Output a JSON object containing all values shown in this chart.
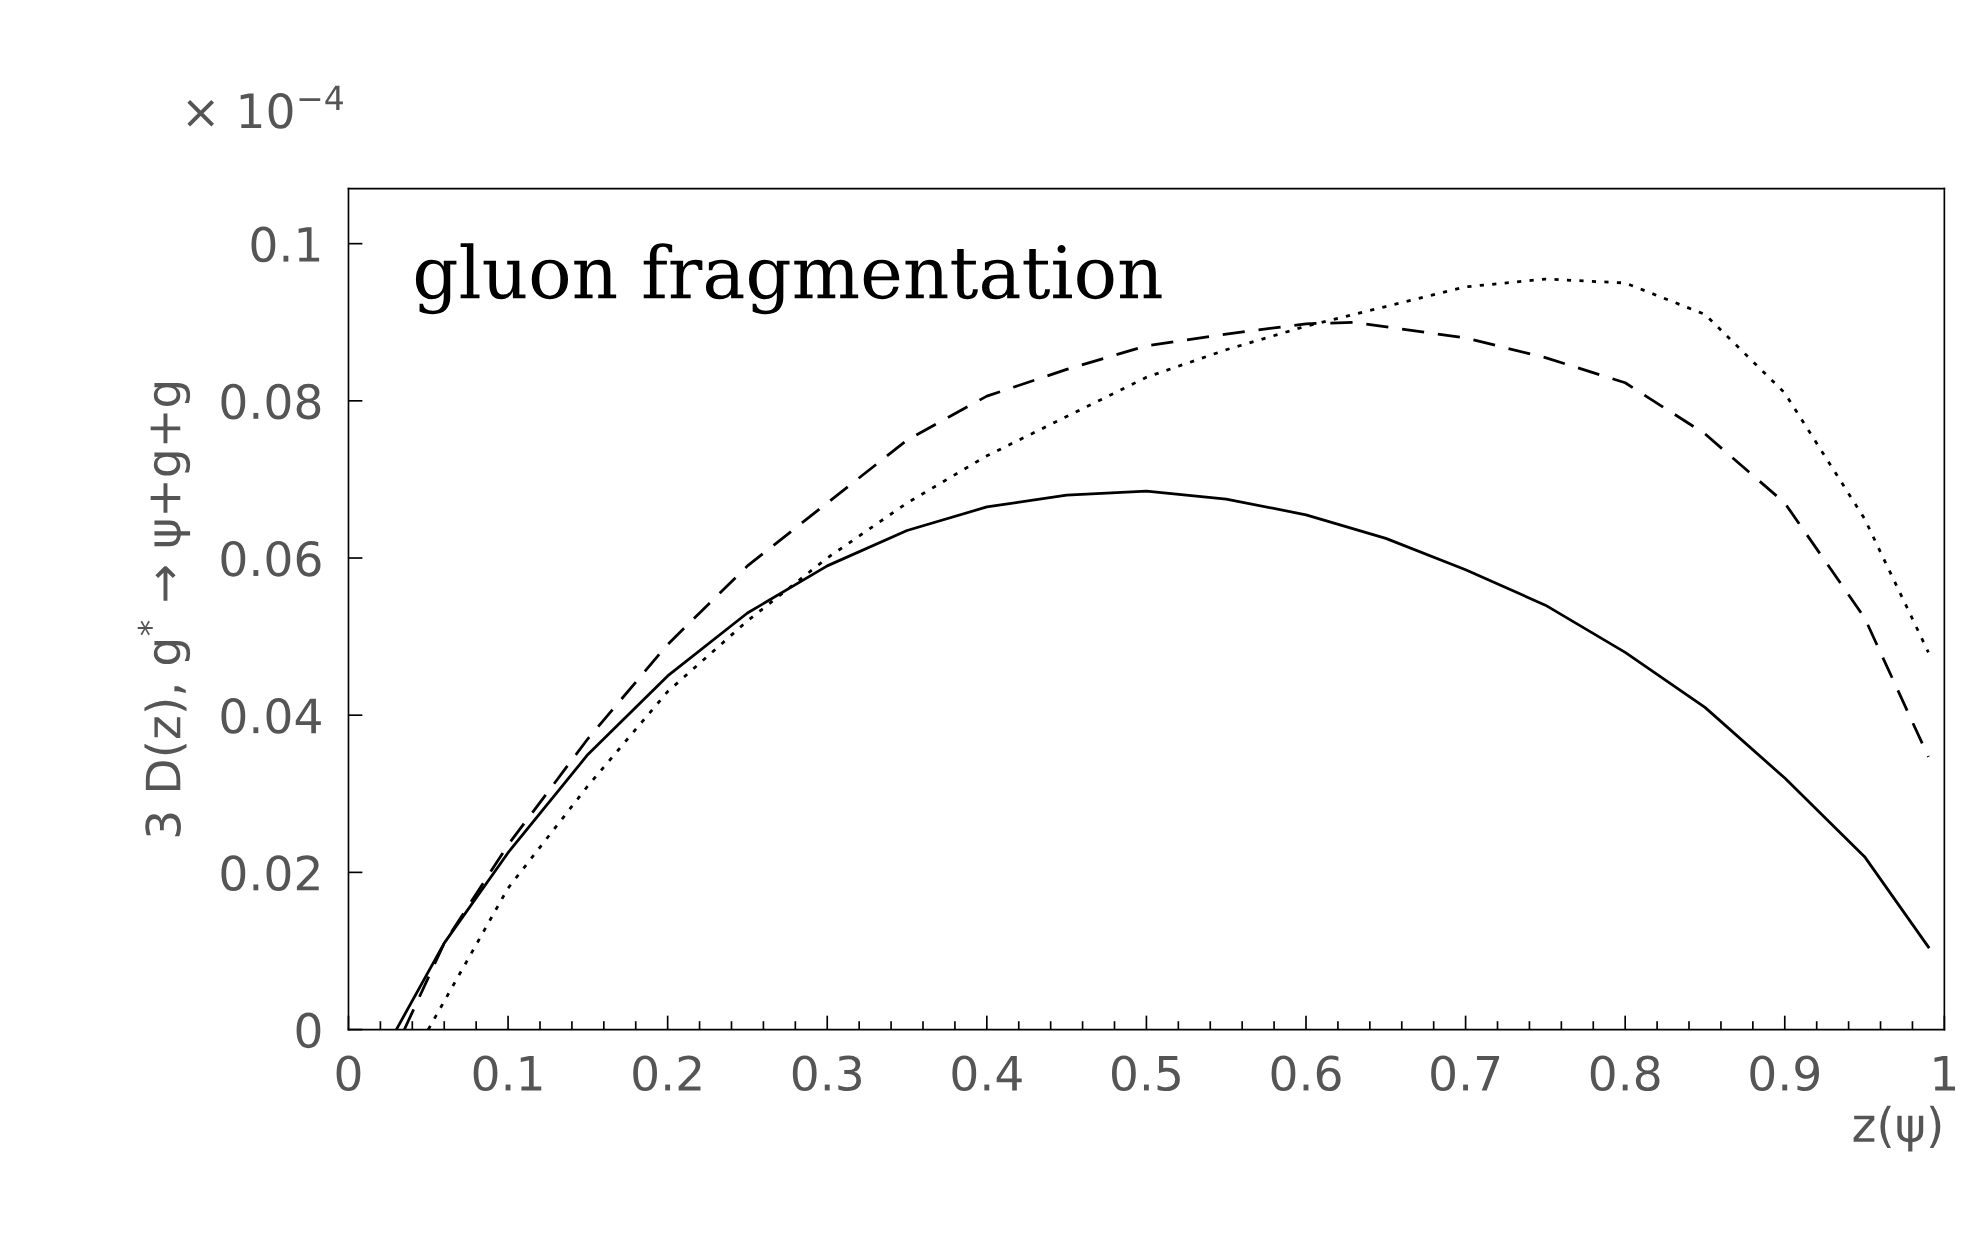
{
  "chart_data": {
    "type": "line",
    "xlabel": "z(ψ)",
    "ylabel": "3 D(z), g$^{*}$ → ψ+g+g",
    "annotations": [
      "gluon fragmentation",
      "× 10$^{−4}$"
    ],
    "xlim": [
      0,
      1
    ],
    "ylim": [
      0,
      0.107
    ],
    "xticks": [
      0,
      0.1,
      0.2,
      0.3,
      0.4,
      0.5,
      0.6,
      0.7,
      0.8,
      0.9,
      1
    ],
    "yticks": [
      0,
      0.02,
      0.04,
      0.06,
      0.08,
      0.1
    ],
    "grid": false,
    "legend": false,
    "marker": "none",
    "series": [
      {
        "color": "#000000",
        "line_style": "solid",
        "x": [
          0.03,
          0.06,
          0.1,
          0.15,
          0.2,
          0.25,
          0.3,
          0.35,
          0.4,
          0.45,
          0.5,
          0.55,
          0.6,
          0.65,
          0.7,
          0.75,
          0.8,
          0.85,
          0.9,
          0.95,
          0.99
        ],
        "values": [
          0,
          0.011,
          0.0225,
          0.035,
          0.045,
          0.053,
          0.059,
          0.0635,
          0.0665,
          0.068,
          0.0685,
          0.0675,
          0.0655,
          0.0625,
          0.0585,
          0.054,
          0.048,
          0.041,
          0.032,
          0.022,
          0.0105
        ]
      },
      {
        "color": "#000000",
        "line_style": "dashed",
        "x": [
          0.035,
          0.06,
          0.1,
          0.15,
          0.2,
          0.25,
          0.3,
          0.35,
          0.4,
          0.45,
          0.5,
          0.55,
          0.6,
          0.63,
          0.7,
          0.75,
          0.8,
          0.85,
          0.9,
          0.95,
          0.99
        ],
        "values": [
          0,
          0.011,
          0.0235,
          0.037,
          0.049,
          0.059,
          0.067,
          0.075,
          0.0806,
          0.084,
          0.087,
          0.0885,
          0.0898,
          0.09,
          0.088,
          0.0855,
          0.0823,
          0.0758,
          0.067,
          0.0524,
          0.0347
        ]
      },
      {
        "color": "#000000",
        "line_style": "dotted",
        "x": [
          0.05,
          0.1,
          0.15,
          0.2,
          0.25,
          0.3,
          0.35,
          0.4,
          0.45,
          0.5,
          0.55,
          0.6,
          0.65,
          0.7,
          0.75,
          0.8,
          0.85,
          0.9,
          0.95,
          0.99
        ],
        "values": [
          0,
          0.018,
          0.031,
          0.043,
          0.052,
          0.06,
          0.067,
          0.073,
          0.078,
          0.083,
          0.0865,
          0.0895,
          0.092,
          0.0945,
          0.0955,
          0.095,
          0.091,
          0.081,
          0.065,
          0.048
        ]
      }
    ]
  }
}
